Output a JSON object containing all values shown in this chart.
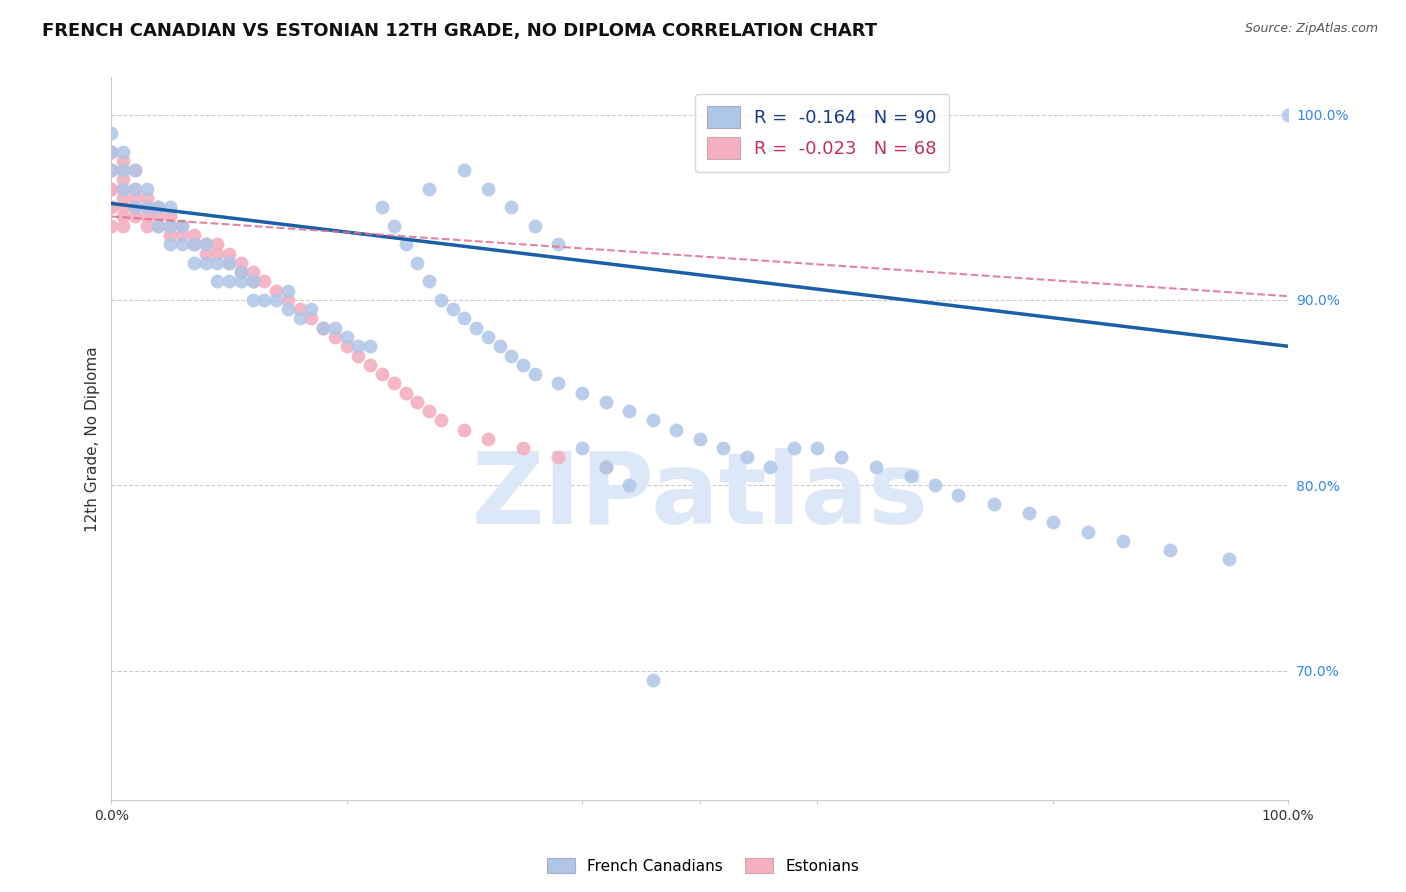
{
  "title": "FRENCH CANADIAN VS ESTONIAN 12TH GRADE, NO DIPLOMA CORRELATION CHART",
  "source": "Source: ZipAtlas.com",
  "ylabel": "12th Grade, No Diploma",
  "watermark": "ZIPatlas",
  "legend_blue_r": "-0.164",
  "legend_blue_n": "90",
  "legend_pink_r": "-0.023",
  "legend_pink_n": "68",
  "blue_color": "#aec6e8",
  "blue_edge_color": "#7aaad0",
  "blue_line_color": "#1a5fa8",
  "pink_color": "#f4b0c0",
  "pink_edge_color": "#e07090",
  "pink_line_color": "#e07090",
  "grid_color": "#cccccc",
  "background_color": "#ffffff",
  "title_fontsize": 13,
  "axis_label_fontsize": 11,
  "tick_fontsize": 10,
  "watermark_color": "#dce8f8",
  "watermark_fontsize": 72,
  "xlim": [
    0.0,
    1.0
  ],
  "ylim": [
    0.63,
    1.02
  ],
  "yticks": [
    0.7,
    0.8,
    0.9,
    1.0
  ],
  "ytick_labels": [
    "70.0%",
    "80.0%",
    "90.0%",
    "100.0%"
  ],
  "blue_x": [
    0.0,
    0.0,
    0.0,
    0.01,
    0.01,
    0.01,
    0.02,
    0.02,
    0.02,
    0.03,
    0.03,
    0.04,
    0.04,
    0.05,
    0.05,
    0.05,
    0.06,
    0.06,
    0.07,
    0.07,
    0.08,
    0.08,
    0.09,
    0.09,
    0.1,
    0.1,
    0.11,
    0.11,
    0.12,
    0.12,
    0.13,
    0.14,
    0.15,
    0.15,
    0.16,
    0.17,
    0.18,
    0.19,
    0.2,
    0.21,
    0.22,
    0.23,
    0.24,
    0.25,
    0.26,
    0.27,
    0.28,
    0.29,
    0.3,
    0.31,
    0.32,
    0.33,
    0.34,
    0.35,
    0.36,
    0.38,
    0.4,
    0.42,
    0.44,
    0.46,
    0.48,
    0.5,
    0.52,
    0.54,
    0.56,
    0.58,
    0.6,
    0.62,
    0.65,
    0.68,
    0.7,
    0.72,
    0.75,
    0.78,
    0.8,
    0.83,
    0.86,
    0.9,
    0.95,
    1.0,
    0.27,
    0.3,
    0.32,
    0.34,
    0.36,
    0.38,
    0.4,
    0.42,
    0.44,
    0.46
  ],
  "blue_y": [
    0.97,
    0.98,
    0.99,
    0.96,
    0.97,
    0.98,
    0.95,
    0.96,
    0.97,
    0.95,
    0.96,
    0.94,
    0.95,
    0.93,
    0.94,
    0.95,
    0.93,
    0.94,
    0.92,
    0.93,
    0.92,
    0.93,
    0.91,
    0.92,
    0.91,
    0.92,
    0.91,
    0.915,
    0.9,
    0.91,
    0.9,
    0.9,
    0.895,
    0.905,
    0.89,
    0.895,
    0.885,
    0.885,
    0.88,
    0.875,
    0.875,
    0.95,
    0.94,
    0.93,
    0.92,
    0.91,
    0.9,
    0.895,
    0.89,
    0.885,
    0.88,
    0.875,
    0.87,
    0.865,
    0.86,
    0.855,
    0.85,
    0.845,
    0.84,
    0.835,
    0.83,
    0.825,
    0.82,
    0.815,
    0.81,
    0.82,
    0.82,
    0.815,
    0.81,
    0.805,
    0.8,
    0.795,
    0.79,
    0.785,
    0.78,
    0.775,
    0.77,
    0.765,
    0.76,
    1.0,
    0.96,
    0.97,
    0.96,
    0.95,
    0.94,
    0.93,
    0.82,
    0.81,
    0.8,
    0.695
  ],
  "pink_x": [
    0.0,
    0.0,
    0.0,
    0.0,
    0.0,
    0.0,
    0.0,
    0.0,
    0.0,
    0.0,
    0.01,
    0.01,
    0.01,
    0.01,
    0.01,
    0.01,
    0.01,
    0.01,
    0.02,
    0.02,
    0.02,
    0.02,
    0.02,
    0.03,
    0.03,
    0.03,
    0.03,
    0.04,
    0.04,
    0.04,
    0.05,
    0.05,
    0.05,
    0.06,
    0.06,
    0.07,
    0.07,
    0.08,
    0.08,
    0.09,
    0.09,
    0.1,
    0.1,
    0.11,
    0.11,
    0.12,
    0.12,
    0.13,
    0.14,
    0.15,
    0.16,
    0.17,
    0.18,
    0.19,
    0.2,
    0.21,
    0.22,
    0.23,
    0.24,
    0.25,
    0.26,
    0.27,
    0.28,
    0.3,
    0.32,
    0.35,
    0.38,
    0.42
  ],
  "pink_y": [
    0.98,
    0.98,
    0.97,
    0.97,
    0.97,
    0.96,
    0.96,
    0.95,
    0.95,
    0.94,
    0.975,
    0.97,
    0.965,
    0.96,
    0.955,
    0.95,
    0.945,
    0.94,
    0.97,
    0.96,
    0.955,
    0.95,
    0.945,
    0.955,
    0.95,
    0.945,
    0.94,
    0.95,
    0.945,
    0.94,
    0.945,
    0.94,
    0.935,
    0.94,
    0.935,
    0.935,
    0.93,
    0.93,
    0.925,
    0.93,
    0.925,
    0.925,
    0.92,
    0.92,
    0.915,
    0.915,
    0.91,
    0.91,
    0.905,
    0.9,
    0.895,
    0.89,
    0.885,
    0.88,
    0.875,
    0.87,
    0.865,
    0.86,
    0.855,
    0.85,
    0.845,
    0.84,
    0.835,
    0.83,
    0.825,
    0.82,
    0.815,
    0.81
  ],
  "blue_line_x": [
    0.0,
    1.0
  ],
  "blue_line_y": [
    0.952,
    0.875
  ],
  "pink_line_x": [
    0.0,
    1.0
  ],
  "pink_line_y": [
    0.945,
    0.902
  ]
}
